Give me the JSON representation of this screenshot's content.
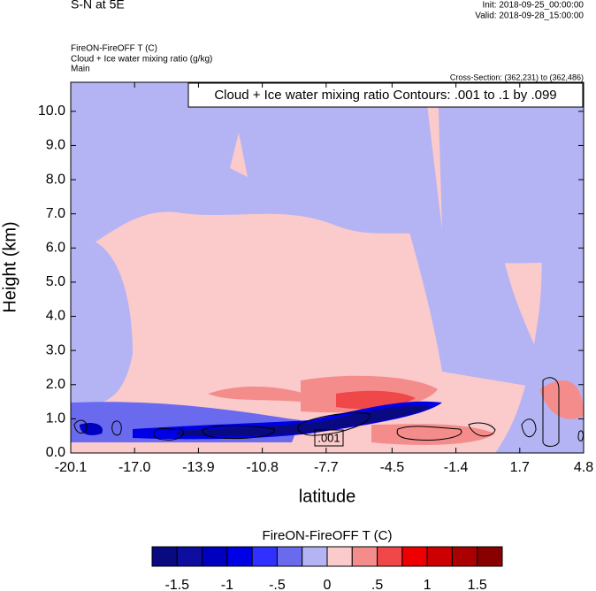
{
  "chart_data": {
    "type": "contour",
    "title": "S-N at 5E",
    "init": "Init: 2018-09-25_00:00:00",
    "valid": "Valid: 2018-09-28_15:00:00",
    "fill_label": "FireON-FireOFF T   (C)",
    "contour_field_label": "Cloud + Ice water mixing ratio   (g/kg)",
    "domain": "Main",
    "cross_section": "Cross-Section: (362,231) to (362,486)",
    "contour_info": "Cloud + Ice water mixing ratio Contours: .001 to .1 by .099",
    "contour_label": ".001",
    "x_label": "latitude",
    "y_label": "Height (km)",
    "xlim": [
      -20.1,
      4.8
    ],
    "xticks": [
      -20.1,
      {
        "value": -17,
        "label": "-17.0"
      },
      -13.9,
      -10.8,
      -7.7,
      -4.5,
      -1.4,
      1.7,
      4.8
    ],
    "ylim": [
      0,
      10.85
    ],
    "yticks": [
      {
        "value": 0,
        "label": "0.0"
      },
      {
        "value": 1,
        "label": "1.0"
      },
      {
        "value": 2,
        "label": "2.0"
      },
      {
        "value": 3,
        "label": "3.0"
      },
      {
        "value": 4,
        "label": "4.0"
      },
      {
        "value": 5,
        "label": "5.0"
      },
      {
        "value": 6,
        "label": "6.0"
      },
      {
        "value": 7,
        "label": "7.0"
      },
      {
        "value": 8,
        "label": "8.0"
      },
      {
        "value": 9,
        "label": "9.0"
      },
      {
        "value": 10,
        "label": "10.0"
      }
    ],
    "colorbar": {
      "title": "FireON-FireOFF T  (C)",
      "levels": [
        -1.5,
        -1.25,
        -1,
        -0.75,
        -0.5,
        -0.25,
        0,
        0.25,
        0.5,
        0.75,
        1,
        1.25,
        1.5
      ],
      "colors": [
        "#0a0a80",
        "#0d0da0",
        "#0000c0",
        "#0000e6",
        "#3030ff",
        "#6a6aee",
        "#b4b4f5",
        "#fbcaca",
        "#f58c8c",
        "#f04848",
        "#ee0000",
        "#cc0000",
        "#aa0000",
        "#880000"
      ],
      "ticks": [
        -1.5,
        -1,
        {
          "value": -0.5,
          "label": "-.5"
        },
        0,
        {
          "value": 0.5,
          "label": ".5"
        },
        1,
        1.5
      ]
    }
  }
}
